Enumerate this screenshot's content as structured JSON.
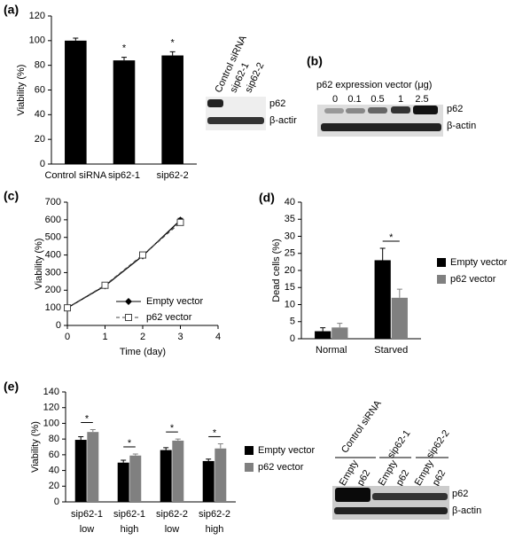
{
  "panel_labels": [
    "(a)",
    "(b)",
    "(c)",
    "(d)",
    "(e)"
  ],
  "chart_data": [
    {
      "type": "bar",
      "ylabel": "Viability (%)",
      "categories": [
        "Control siRNA",
        "sip62-1",
        "sip62-2"
      ],
      "values": [
        100,
        84,
        88
      ],
      "errors": [
        2,
        2.5,
        3
      ],
      "color": "#000000",
      "ylim": [
        0,
        120
      ],
      "yticks": [
        0,
        20,
        40,
        60,
        80,
        100,
        120
      ],
      "annotations": [
        {
          "text": "*",
          "category": "sip62-1"
        },
        {
          "text": "*",
          "category": "sip62-2"
        }
      ]
    },
    {
      "type": "line",
      "xlabel": "Time (day)",
      "ylabel": "Viability (%)",
      "x": [
        0,
        1,
        2,
        3
      ],
      "series": [
        {
          "name": "Empty vector",
          "color": "#000000",
          "marker": "diamond",
          "linestyle": "solid",
          "values": [
            100,
            225,
            395,
            598
          ],
          "errors": [
            5,
            10,
            12,
            10
          ]
        },
        {
          "name": "p62 vector",
          "color": "#444444",
          "marker": "square",
          "linestyle": "dashed",
          "values": [
            100,
            228,
            400,
            585
          ],
          "errors": [
            5,
            10,
            15,
            15
          ]
        }
      ],
      "xlim": [
        0,
        4
      ],
      "xticks": [
        0,
        1,
        2,
        3,
        4
      ],
      "ylim": [
        0,
        700
      ],
      "yticks": [
        0,
        100,
        200,
        300,
        400,
        500,
        600,
        700
      ],
      "legend": "lower right"
    },
    {
      "type": "bar",
      "ylabel": "Dead cells (%)",
      "categories": [
        "Normal",
        "Starved"
      ],
      "series": [
        {
          "name": "Empty vector",
          "color": "#000000",
          "values": [
            2.2,
            23
          ],
          "errors": [
            1,
            3.5
          ]
        },
        {
          "name": "p62 vector",
          "color": "#808080",
          "values": [
            3.3,
            12
          ],
          "errors": [
            1.2,
            2.5
          ]
        }
      ],
      "ylim": [
        0,
        40
      ],
      "yticks": [
        0,
        5,
        10,
        15,
        20,
        25,
        30,
        35,
        40
      ],
      "legend": "right",
      "annotations": [
        {
          "text": "*",
          "category": "Starved"
        }
      ]
    },
    {
      "type": "bar",
      "ylabel": "Viability (%)",
      "categories": [
        [
          "sip62-1",
          "low"
        ],
        [
          "sip62-1",
          "high"
        ],
        [
          "sip62-2",
          "low"
        ],
        [
          "sip62-2",
          "high"
        ]
      ],
      "series": [
        {
          "name": "Empty vector",
          "color": "#000000",
          "values": [
            79,
            50,
            66,
            52
          ],
          "errors": [
            4,
            3,
            3,
            2.5
          ]
        },
        {
          "name": "p62 vector",
          "color": "#808080",
          "values": [
            89,
            59,
            78,
            68
          ],
          "errors": [
            3,
            2,
            2,
            6
          ]
        }
      ],
      "ylim": [
        0,
        140
      ],
      "yticks": [
        0,
        20,
        40,
        60,
        80,
        100,
        120,
        140
      ],
      "legend": "right",
      "annotations": [
        {
          "text": "*",
          "category": 0
        },
        {
          "text": "*",
          "category": 1
        },
        {
          "text": "*",
          "category": 2
        },
        {
          "text": "*",
          "category": 3
        }
      ]
    }
  ],
  "blots": [
    {
      "lanes": [
        "Control siRNA",
        "sip62-1",
        "sip62-2"
      ],
      "bands": [
        "p62",
        "β-actir"
      ]
    },
    {
      "title": "p62 expression vector (μg)",
      "lanes": [
        "0",
        "0.1",
        "0.5",
        "1",
        "2.5"
      ],
      "bands": [
        "p62",
        "β-actin"
      ]
    },
    {
      "groups": [
        "Control siRNA",
        "sip62-1",
        "sip62-2"
      ],
      "lanes": [
        "Empty",
        "p62",
        "Empty",
        "p62",
        "Empty",
        "p62"
      ],
      "bands": [
        "p62",
        "β-actin"
      ]
    }
  ]
}
